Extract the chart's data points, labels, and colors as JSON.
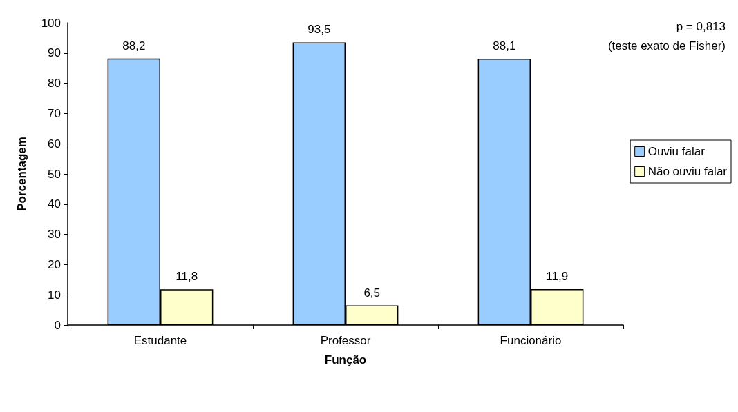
{
  "chart_data": {
    "type": "bar",
    "xlabel": "Função",
    "ylabel": "Porcentagem",
    "categories": [
      "Estudante",
      "Professor",
      "Funcionário"
    ],
    "series": [
      {
        "name": "Ouviu falar",
        "color": "#99ccff",
        "values": [
          88.2,
          93.5,
          88.1
        ],
        "value_labels": [
          "88,2",
          "93,5",
          "88,1"
        ]
      },
      {
        "name": "Não ouviu falar",
        "color": "#ffffcc",
        "values": [
          11.8,
          6.5,
          11.9
        ],
        "value_labels": [
          "11,8",
          "6,5",
          "11,9"
        ]
      }
    ],
    "ylim": [
      0,
      100
    ],
    "yticks": [
      0,
      10,
      20,
      30,
      40,
      50,
      60,
      70,
      80,
      90,
      100
    ],
    "grid": false,
    "legend": "right",
    "annotations": [
      "p = 0,813",
      "(teste exato de Fisher)"
    ]
  }
}
